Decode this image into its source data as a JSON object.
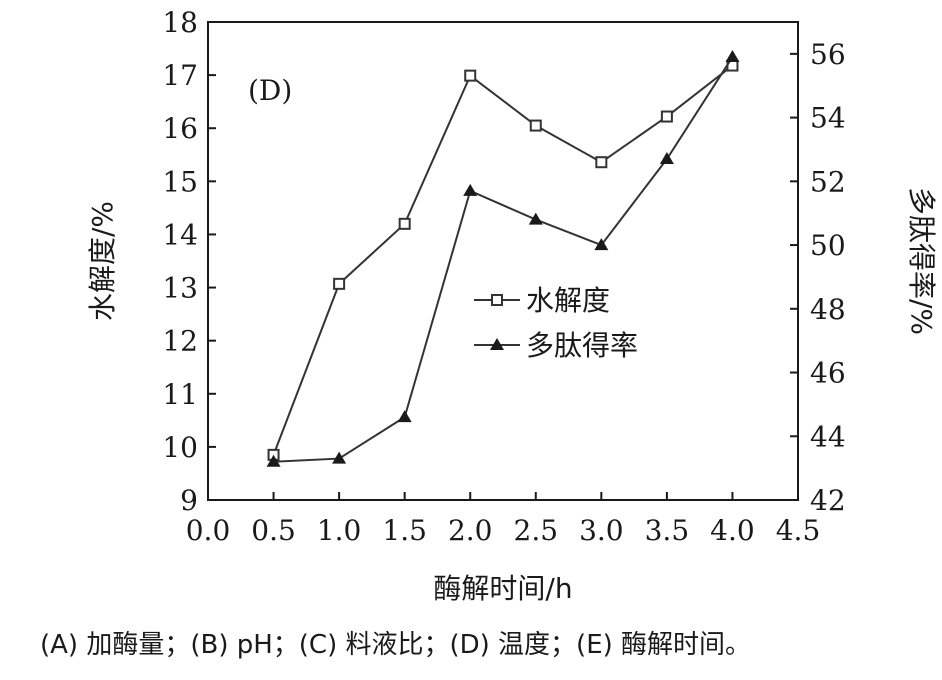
{
  "chart_data": {
    "type": "line",
    "panel_label": "(D)",
    "xlabel": "酶解时间/h",
    "ylabel_left": "水解度/%",
    "ylabel_right": "多肽得率/%",
    "xlim": [
      0,
      4.5
    ],
    "ylim_left": [
      9,
      18
    ],
    "ylim_right": [
      42,
      57
    ],
    "x_ticks": [
      "0.0",
      "0.5",
      "1.0",
      "1.5",
      "2.0",
      "2.5",
      "3.0",
      "3.5",
      "4.0",
      "4.5"
    ],
    "y_left_ticks": [
      "9",
      "10",
      "11",
      "12",
      "13",
      "14",
      "15",
      "16",
      "17",
      "18"
    ],
    "y_right_ticks": [
      "42",
      "44",
      "46",
      "48",
      "50",
      "52",
      "54",
      "56"
    ],
    "grid": false,
    "legend_position": "center",
    "series": [
      {
        "name": "水解度",
        "axis": "left",
        "marker": "open-square",
        "x": [
          0.5,
          1.0,
          1.5,
          2.0,
          2.5,
          3.0,
          3.5,
          4.0
        ],
        "y": [
          9.85,
          13.07,
          14.2,
          16.99,
          16.05,
          15.36,
          16.22,
          17.18
        ]
      },
      {
        "name": "多肽得率",
        "axis": "right",
        "marker": "filled-triangle",
        "x": [
          0.5,
          1.0,
          1.5,
          2.0,
          2.5,
          3.0,
          3.5,
          4.0
        ],
        "y": [
          43.2,
          43.3,
          44.6,
          51.7,
          50.8,
          50.0,
          52.7,
          55.9
        ]
      }
    ]
  },
  "caption": "(A) 加酶量；(B) pH；(C) 料液比；(D) 温度；(E) 酶解时间。"
}
